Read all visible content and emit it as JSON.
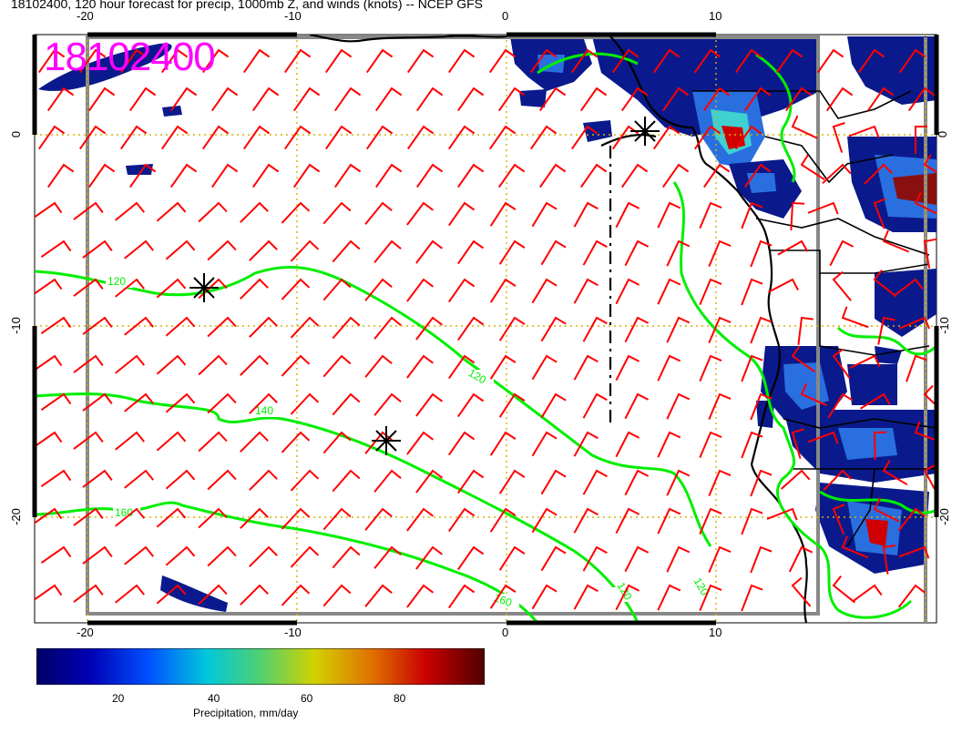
{
  "title": "18102400, 120 hour forecast for precip, 1000mb Z, and winds (knots) -- NCEP GFS",
  "stamp": "18102400",
  "axes": {
    "top_ticks": [
      "-20",
      "-10",
      "0",
      "10"
    ],
    "bottom_ticks": [
      "-20",
      "-10",
      "0",
      "10"
    ],
    "left_ticks": [
      "0",
      "-10",
      "-20"
    ],
    "right_ticks": [
      "0",
      "-10",
      "-20"
    ]
  },
  "contours": {
    "labels": [
      "120",
      "140",
      "160",
      "120",
      "160",
      "120",
      "120"
    ]
  },
  "colorbar": {
    "label": "Precipitation, mm/day",
    "ticks": [
      "20",
      "40",
      "60",
      "80"
    ]
  },
  "colors": {
    "wind_barbs": "#ff0000",
    "contours": "#00ee00",
    "grid": "#d4b200",
    "stamp": "#ff00ff",
    "coast": "#000000"
  }
}
